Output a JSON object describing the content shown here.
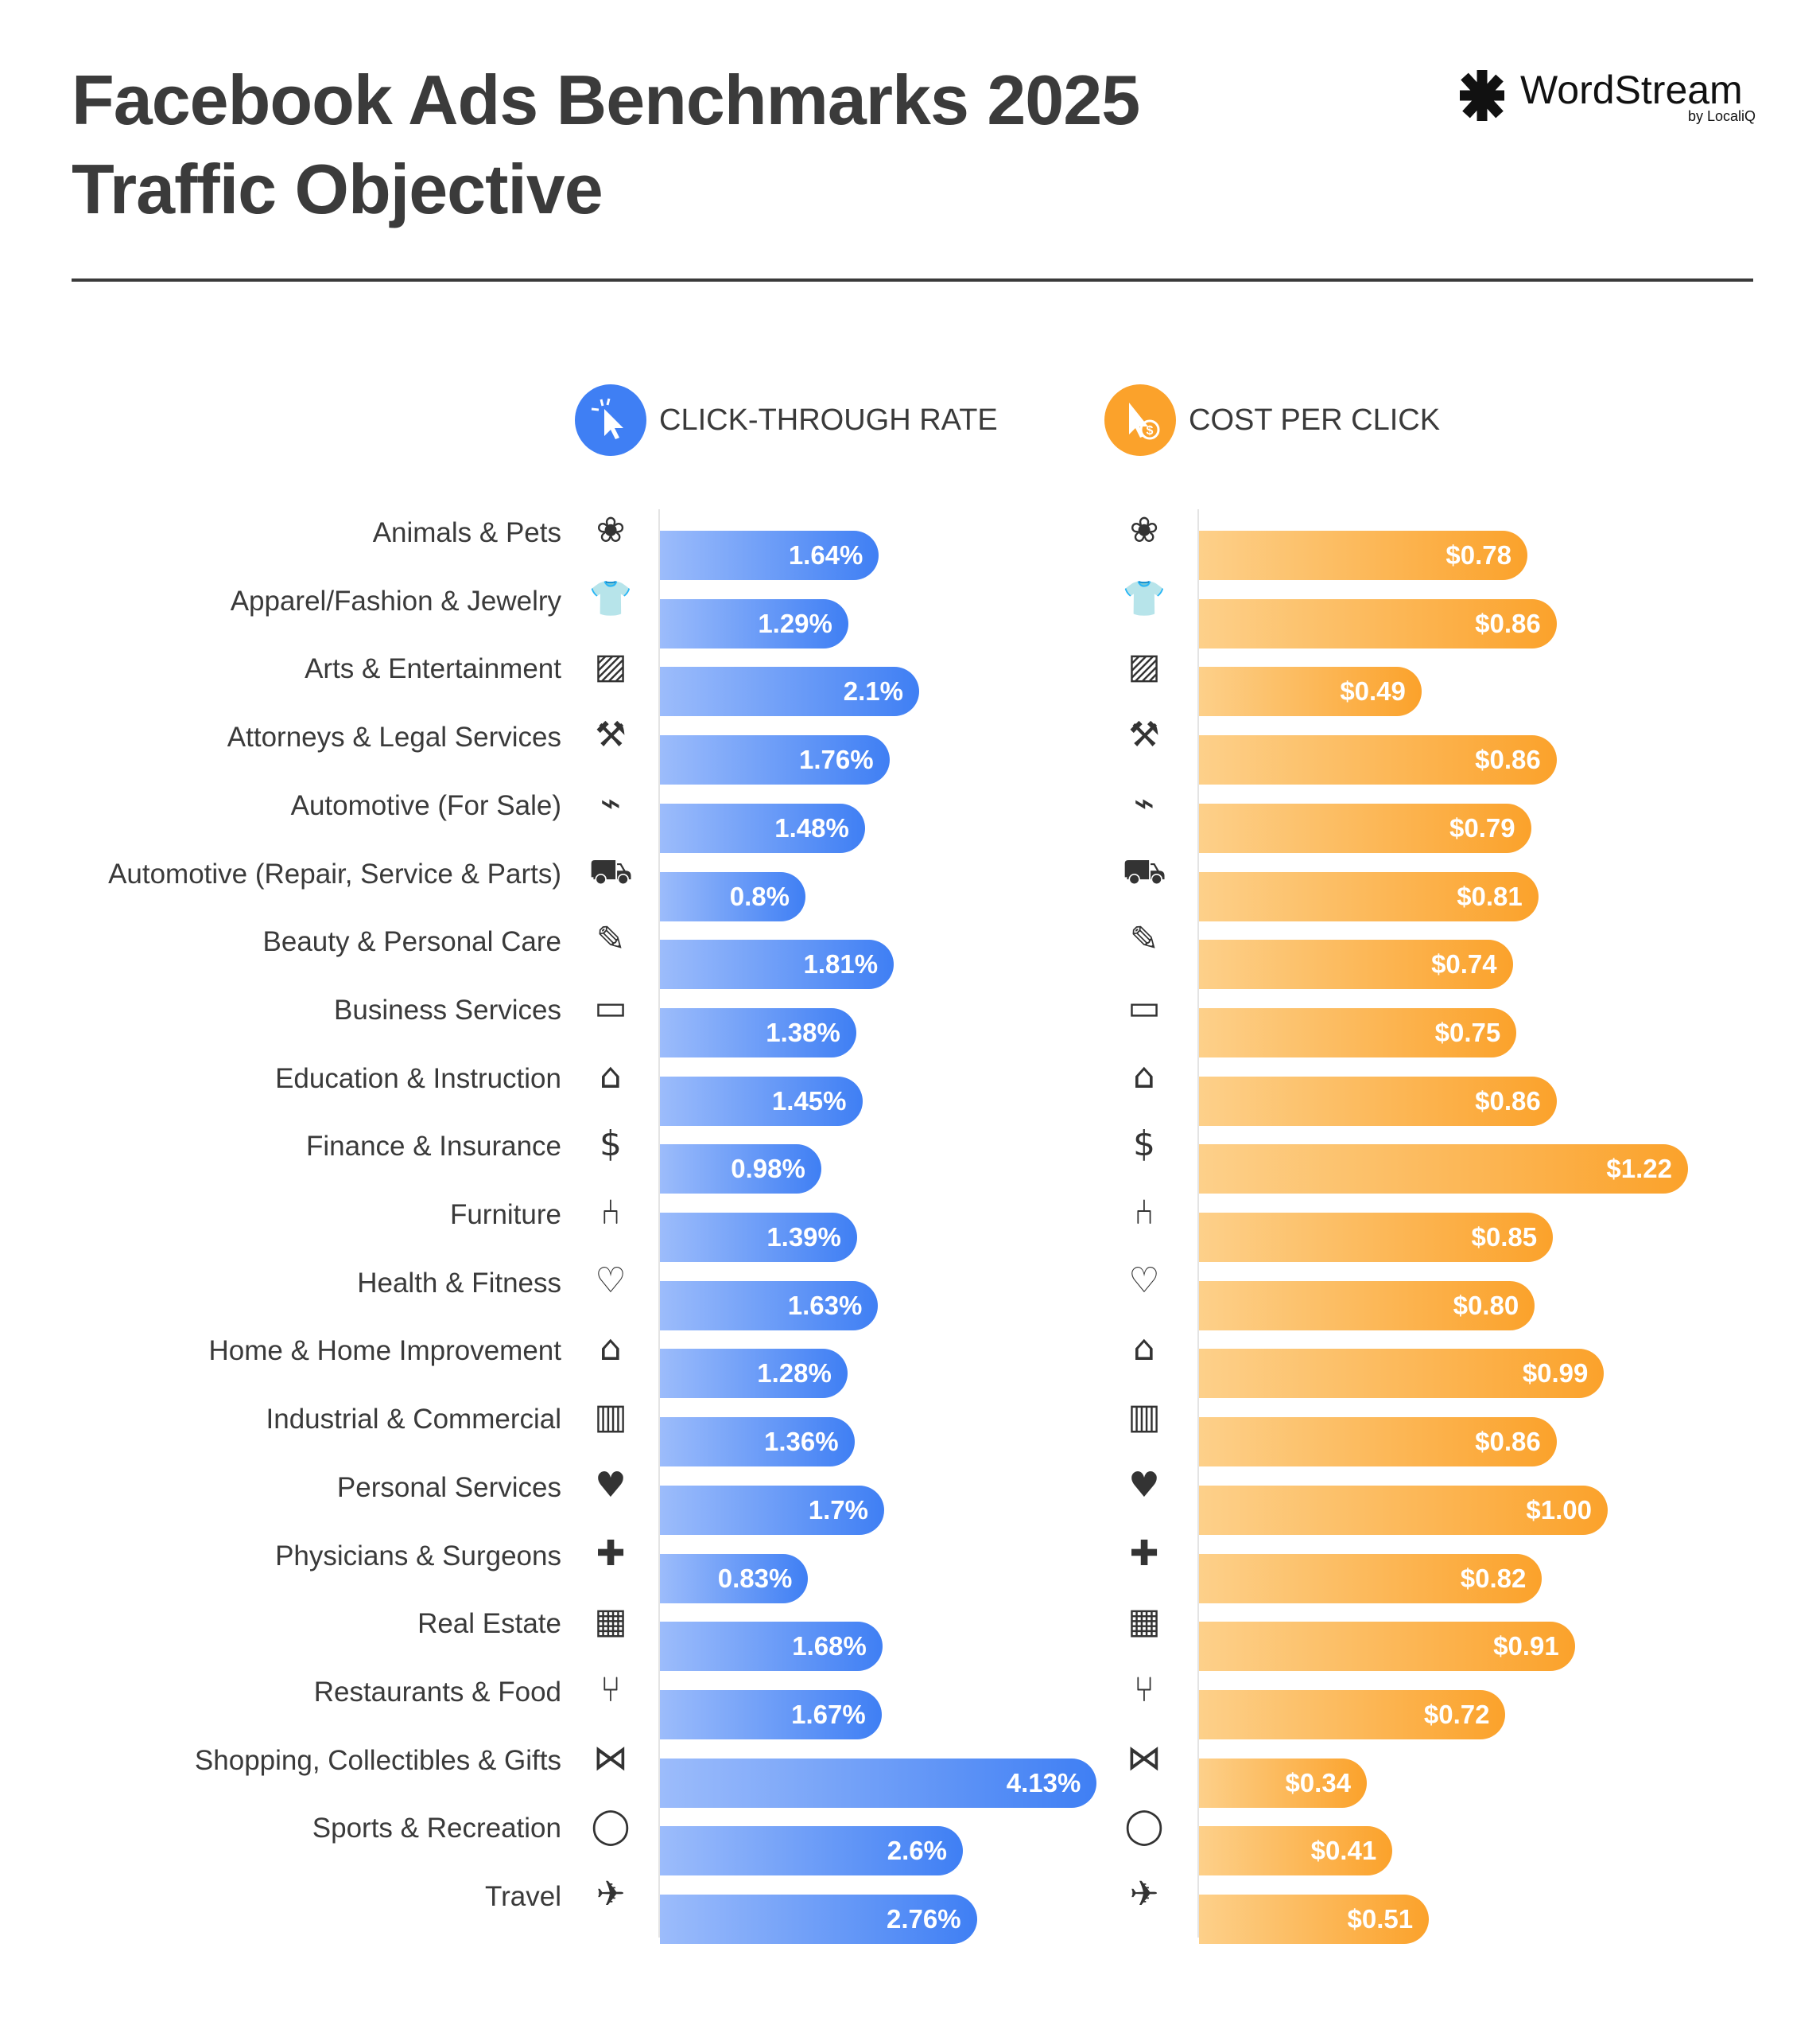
{
  "header": {
    "title_line1": "Facebook Ads Benchmarks 2025",
    "title_line2": "Traffic Objective"
  },
  "logo": {
    "name": "WordStream",
    "by": "by LocaliQ"
  },
  "colors": {
    "ctr": "#3f7ff4",
    "cpc": "#fba22b",
    "text": "#3a3a3a"
  },
  "chart_data": {
    "type": "bar",
    "orientation": "horizontal",
    "categories": [
      "Animals & Pets",
      "Apparel/Fashion & Jewelry",
      "Arts & Entertainment",
      "Attorneys & Legal Services",
      "Automotive (For Sale)",
      "Automotive (Repair, Service & Parts)",
      "Beauty & Personal Care",
      "Business Services",
      "Education & Instruction",
      "Finance & Insurance",
      "Furniture",
      "Health & Fitness",
      "Home & Home Improvement",
      "Industrial & Commercial",
      "Personal Services",
      "Physicians & Surgeons",
      "Real Estate",
      "Restaurants & Food",
      "Shopping, Collectibles & Gifts",
      "Sports & Recreation",
      "Travel"
    ],
    "icons": [
      "paw-icon",
      "tshirt-icon",
      "picture-icon",
      "gavel-icon",
      "tag-icon",
      "car-icon",
      "comb-icon",
      "briefcase-icon",
      "graduation-cap-icon",
      "piggy-bank-icon",
      "armchair-icon",
      "heart-icon",
      "house-icon",
      "factory-icon",
      "hand-heart-icon",
      "medical-cross-icon",
      "storefront-icon",
      "fork-knife-icon",
      "bow-icon",
      "ball-icon",
      "airplane-icon"
    ],
    "series": [
      {
        "name": "CLICK-THROUGH RATE",
        "icon": "cursor-click-icon",
        "values": [
          1.64,
          1.29,
          2.1,
          1.76,
          1.48,
          0.8,
          1.81,
          1.38,
          1.45,
          0.98,
          1.39,
          1.63,
          1.28,
          1.36,
          1.7,
          0.83,
          1.68,
          1.67,
          4.13,
          2.6,
          2.76
        ],
        "labels": [
          "1.64%",
          "1.29%",
          "2.1%",
          "1.76%",
          "1.48%",
          "0.8%",
          "1.81%",
          "1.38%",
          "1.45%",
          "0.98%",
          "1.39%",
          "1.63%",
          "1.28%",
          "1.36%",
          "1.7%",
          "0.83%",
          "1.68%",
          "1.67%",
          "4.13%",
          "2.6%",
          "2.76%"
        ]
      },
      {
        "name": "COST PER CLICK",
        "icon": "cursor-dollar-icon",
        "values": [
          0.78,
          0.86,
          0.49,
          0.86,
          0.79,
          0.81,
          0.74,
          0.75,
          0.86,
          1.22,
          0.85,
          0.8,
          0.99,
          0.86,
          1.0,
          0.82,
          0.91,
          0.72,
          0.34,
          0.41,
          0.51
        ],
        "labels": [
          "$0.78",
          "$0.86",
          "$0.49",
          "$0.86",
          "$0.79",
          "$0.81",
          "$0.74",
          "$0.75",
          "$0.86",
          "$1.22",
          "$0.85",
          "$0.80",
          "$0.99",
          "$0.86",
          "$1.00",
          "$0.82",
          "$0.91",
          "$0.72",
          "$0.34",
          "$0.41",
          "$0.51"
        ]
      }
    ]
  }
}
